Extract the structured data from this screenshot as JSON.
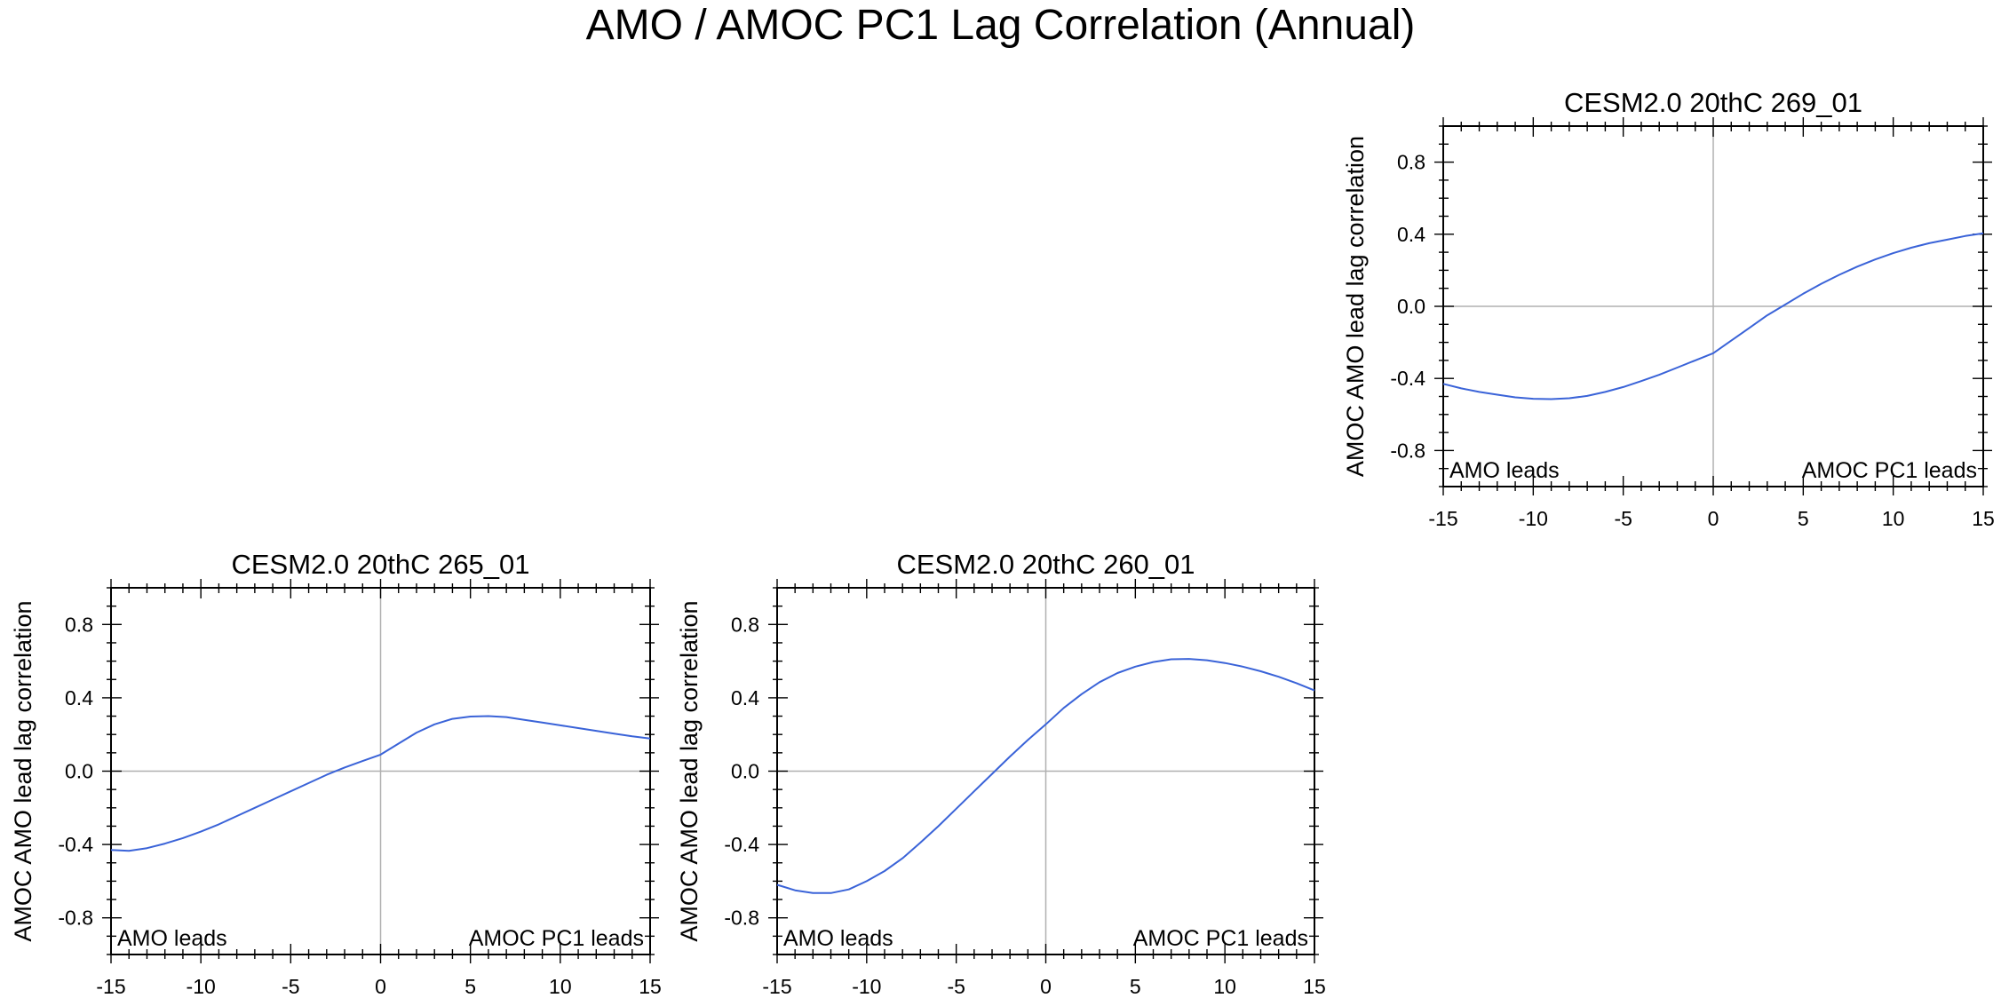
{
  "title": "AMO / AMOC PC1 Lag Correlation (Annual)",
  "colors": {
    "line": "#3a63d8",
    "axis": "#000000",
    "zero_lines": "#b0b0b0"
  },
  "chart_data": [
    {
      "type": "line",
      "title": "CESM2.0 20thC 269_01",
      "xlabel": "",
      "ylabel": "AMOC AMO lead lag correlation",
      "xlim": [
        -15,
        15
      ],
      "ylim": [
        -1,
        1
      ],
      "xticks": [
        -15,
        -10,
        -5,
        0,
        5,
        10,
        15
      ],
      "yticks": [
        -0.8,
        -0.4,
        0.0,
        0.4,
        0.8
      ],
      "ytick_labels": [
        "-0.8",
        "-0.4",
        "0.0",
        "0.4",
        "0.8"
      ],
      "left_annotation": "AMO leads",
      "right_annotation": "AMOC PC1 leads",
      "series": [
        {
          "name": "lag correlation",
          "x": [
            -15,
            -14,
            -13,
            -12,
            -11,
            -10,
            -9,
            -8,
            -7,
            -6,
            -5,
            -4,
            -3,
            -2,
            -1,
            0,
            1,
            2,
            3,
            4,
            5,
            6,
            7,
            8,
            9,
            10,
            11,
            12,
            13,
            14,
            15
          ],
          "values": [
            -0.43,
            -0.455,
            -0.475,
            -0.49,
            -0.505,
            -0.513,
            -0.515,
            -0.51,
            -0.497,
            -0.475,
            -0.448,
            -0.415,
            -0.38,
            -0.34,
            -0.3,
            -0.26,
            -0.19,
            -0.12,
            -0.05,
            0.01,
            0.07,
            0.125,
            0.175,
            0.22,
            0.26,
            0.295,
            0.325,
            0.35,
            0.37,
            0.39,
            0.405
          ]
        }
      ]
    },
    {
      "type": "line",
      "title": "CESM2.0 20thC 265_01",
      "xlabel": "",
      "ylabel": "AMOC AMO lead lag correlation",
      "xlim": [
        -15,
        15
      ],
      "ylim": [
        -1,
        1
      ],
      "xticks": [
        -15,
        -10,
        -5,
        0,
        5,
        10,
        15
      ],
      "yticks": [
        -0.8,
        -0.4,
        0.0,
        0.4,
        0.8
      ],
      "ytick_labels": [
        "-0.8",
        "-0.4",
        "0.0",
        "0.4",
        "0.8"
      ],
      "left_annotation": "AMO leads",
      "right_annotation": "AMOC PC1 leads",
      "series": [
        {
          "name": "lag correlation",
          "x": [
            -15,
            -14,
            -13,
            -12,
            -11,
            -10,
            -9,
            -8,
            -7,
            -6,
            -5,
            -4,
            -3,
            -2,
            -1,
            0,
            1,
            2,
            3,
            4,
            5,
            6,
            7,
            8,
            9,
            10,
            11,
            12,
            13,
            14,
            15
          ],
          "values": [
            -0.43,
            -0.435,
            -0.42,
            -0.395,
            -0.365,
            -0.33,
            -0.29,
            -0.245,
            -0.2,
            -0.155,
            -0.11,
            -0.065,
            -0.02,
            0.02,
            0.055,
            0.09,
            0.15,
            0.21,
            0.255,
            0.285,
            0.298,
            0.3,
            0.295,
            0.28,
            0.265,
            0.25,
            0.235,
            0.22,
            0.205,
            0.19,
            0.178
          ]
        }
      ]
    },
    {
      "type": "line",
      "title": "CESM2.0 20thC 260_01",
      "xlabel": "",
      "ylabel": "AMOC AMO lead lag correlation",
      "xlim": [
        -15,
        15
      ],
      "ylim": [
        -1,
        1
      ],
      "xticks": [
        -15,
        -10,
        -5,
        0,
        5,
        10,
        15
      ],
      "yticks": [
        -0.8,
        -0.4,
        0.0,
        0.4,
        0.8
      ],
      "ytick_labels": [
        "-0.8",
        "-0.4",
        "0.0",
        "0.4",
        "0.8"
      ],
      "left_annotation": "AMO leads",
      "right_annotation": "AMOC PC1 leads",
      "series": [
        {
          "name": "lag correlation",
          "x": [
            -15,
            -14,
            -13,
            -12,
            -11,
            -10,
            -9,
            -8,
            -7,
            -6,
            -5,
            -4,
            -3,
            -2,
            -1,
            0,
            1,
            2,
            3,
            4,
            5,
            6,
            7,
            8,
            9,
            10,
            11,
            12,
            13,
            14,
            15
          ],
          "values": [
            -0.62,
            -0.65,
            -0.665,
            -0.665,
            -0.645,
            -0.6,
            -0.545,
            -0.475,
            -0.39,
            -0.3,
            -0.205,
            -0.11,
            -0.015,
            0.08,
            0.17,
            0.255,
            0.345,
            0.42,
            0.485,
            0.535,
            0.57,
            0.595,
            0.61,
            0.612,
            0.605,
            0.59,
            0.57,
            0.545,
            0.515,
            0.48,
            0.44
          ]
        }
      ]
    }
  ]
}
